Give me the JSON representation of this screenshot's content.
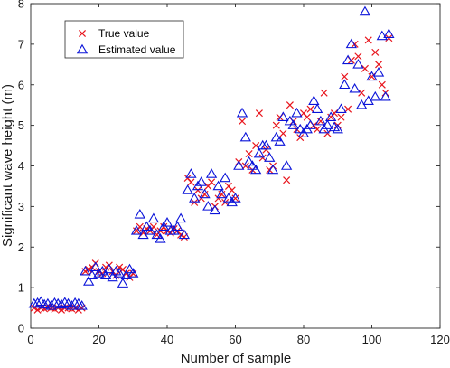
{
  "chart_data": {
    "type": "scatter",
    "xlabel": "Number of sample",
    "ylabel": "Significant wave height (m)",
    "xlim": [
      0,
      120
    ],
    "ylim": [
      0,
      8
    ],
    "xticks": [
      0,
      20,
      40,
      60,
      80,
      100,
      120
    ],
    "yticks": [
      0,
      1,
      2,
      3,
      4,
      5,
      6,
      7,
      8
    ],
    "grid": false,
    "legend_position": "top-left",
    "colors": {
      "true": "#e8141c",
      "estimated": "#0a13d9",
      "axis": "#262626"
    },
    "series": [
      {
        "name": "True value",
        "marker": "x",
        "x": [
          1,
          2,
          3,
          4,
          5,
          6,
          7,
          8,
          9,
          10,
          11,
          12,
          13,
          14,
          15,
          16,
          17,
          18,
          19,
          20,
          21,
          22,
          23,
          24,
          25,
          26,
          27,
          28,
          29,
          30,
          31,
          32,
          33,
          34,
          35,
          36,
          37,
          38,
          39,
          40,
          41,
          42,
          43,
          44,
          45,
          46,
          47,
          48,
          49,
          50,
          51,
          52,
          53,
          54,
          55,
          56,
          57,
          58,
          59,
          60,
          61,
          62,
          63,
          64,
          65,
          66,
          67,
          68,
          69,
          70,
          71,
          72,
          73,
          74,
          75,
          76,
          77,
          78,
          79,
          80,
          81,
          82,
          83,
          84,
          85,
          86,
          87,
          88,
          89,
          90,
          91,
          92,
          93,
          94,
          95,
          96,
          97,
          98,
          99,
          100,
          101,
          102,
          103,
          104,
          105
        ],
        "y": [
          0.5,
          0.45,
          0.5,
          0.48,
          0.52,
          0.5,
          0.47,
          0.5,
          0.45,
          0.5,
          0.5,
          0.48,
          0.5,
          0.45,
          0.5,
          1.4,
          1.45,
          1.5,
          1.6,
          1.4,
          1.35,
          1.5,
          1.55,
          1.4,
          1.3,
          1.5,
          1.45,
          1.35,
          1.25,
          1.35,
          2.4,
          2.5,
          2.35,
          2.45,
          2.4,
          2.5,
          2.3,
          2.4,
          2.5,
          2.4,
          2.35,
          2.45,
          2.4,
          2.3,
          2.25,
          3.7,
          3.6,
          3.1,
          3.4,
          3.2,
          3.3,
          3.5,
          3.6,
          3.0,
          3.2,
          3.3,
          3.1,
          3.5,
          3.4,
          3.2,
          4.1,
          5.1,
          4.0,
          4.3,
          3.9,
          4.5,
          5.3,
          4.2,
          4.4,
          3.9,
          4.0,
          5.0,
          5.2,
          4.8,
          3.65,
          5.5,
          5.1,
          4.9,
          4.7,
          5.3,
          5.2,
          5.4,
          5.0,
          4.9,
          5.1,
          5.8,
          4.8,
          5.2,
          5.3,
          5.0,
          5.2,
          6.2,
          5.4,
          6.6,
          7.0,
          6.7,
          5.8,
          6.4,
          7.1,
          6.2,
          6.8,
          6.5,
          6.0,
          5.8,
          7.15
        ]
      },
      {
        "name": "Estimated value",
        "marker": "triangle",
        "x": [
          1,
          2,
          3,
          4,
          5,
          6,
          7,
          8,
          9,
          10,
          11,
          12,
          13,
          14,
          15,
          16,
          17,
          18,
          19,
          20,
          21,
          22,
          23,
          24,
          25,
          26,
          27,
          28,
          29,
          30,
          31,
          32,
          33,
          34,
          35,
          36,
          37,
          38,
          39,
          40,
          41,
          42,
          43,
          44,
          45,
          46,
          47,
          48,
          49,
          50,
          51,
          52,
          53,
          54,
          55,
          56,
          57,
          58,
          59,
          60,
          61,
          62,
          63,
          64,
          65,
          66,
          67,
          68,
          69,
          70,
          71,
          72,
          73,
          74,
          75,
          76,
          77,
          78,
          79,
          80,
          81,
          82,
          83,
          84,
          85,
          86,
          87,
          88,
          89,
          90,
          91,
          92,
          93,
          94,
          95,
          96,
          97,
          98,
          99,
          100,
          101,
          102,
          103,
          104,
          105
        ],
        "y": [
          0.6,
          0.62,
          0.65,
          0.58,
          0.6,
          0.55,
          0.62,
          0.6,
          0.58,
          0.63,
          0.6,
          0.55,
          0.62,
          0.6,
          0.55,
          1.4,
          1.15,
          1.3,
          1.5,
          1.35,
          1.4,
          1.3,
          1.45,
          1.25,
          1.4,
          1.35,
          1.1,
          1.3,
          1.45,
          1.35,
          2.4,
          2.8,
          2.3,
          2.5,
          2.4,
          2.7,
          2.3,
          2.2,
          2.5,
          2.6,
          2.4,
          2.4,
          2.5,
          2.7,
          2.3,
          3.4,
          3.8,
          3.2,
          3.5,
          3.6,
          3.3,
          3.0,
          3.8,
          2.9,
          3.5,
          3.3,
          3.7,
          3.2,
          3.1,
          3.2,
          4.0,
          5.3,
          4.7,
          4.1,
          4.0,
          3.9,
          4.3,
          4.5,
          4.5,
          4.2,
          3.9,
          4.7,
          4.6,
          5.2,
          4.0,
          5.1,
          5.0,
          5.3,
          4.9,
          4.8,
          4.9,
          5.0,
          5.6,
          5.4,
          5.1,
          4.9,
          5.0,
          5.2,
          4.95,
          4.9,
          5.4,
          6.0,
          6.6,
          7.0,
          5.9,
          6.5,
          5.5,
          7.8,
          5.6,
          6.2,
          5.7,
          6.3,
          7.2,
          5.7,
          7.25
        ]
      }
    ]
  }
}
